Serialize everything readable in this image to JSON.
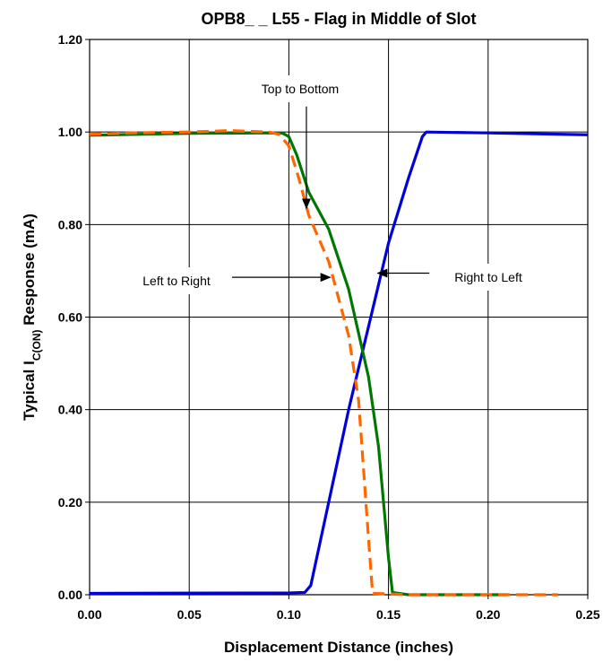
{
  "chart_data": {
    "type": "line",
    "title": "OPB8_ _ L55 - Flag in Middle of Slot",
    "xlabel": "Displacement Distance (inches)",
    "ylabel": {
      "pre": "Typical I",
      "sub": "C(ON)",
      "post": " Response (mA)"
    },
    "xlim": [
      0,
      0.25
    ],
    "ylim": [
      0,
      1.2
    ],
    "x_ticks": [
      0,
      0.05,
      0.1,
      0.15,
      0.2,
      0.25
    ],
    "x_tick_labels": [
      "0.00",
      "0.05",
      "0.10",
      "0.15",
      "0.20",
      "0.25"
    ],
    "y_ticks": [
      0,
      0.2,
      0.4,
      0.6,
      0.8,
      1.0,
      1.2
    ],
    "y_tick_labels": [
      "0.00",
      "0.20",
      "0.40",
      "0.60",
      "0.80",
      "1.00",
      "1.20"
    ],
    "grid": true,
    "series": [
      {
        "color": "#0000dd",
        "dash": false,
        "points": [
          [
            0,
            0.003
          ],
          [
            0.1,
            0.004
          ],
          [
            0.108,
            0.005
          ],
          [
            0.111,
            0.02
          ],
          [
            0.12,
            0.2
          ],
          [
            0.13,
            0.4
          ],
          [
            0.14,
            0.58
          ],
          [
            0.15,
            0.76
          ],
          [
            0.16,
            0.9
          ],
          [
            0.167,
            0.99
          ],
          [
            0.169,
            1.0
          ],
          [
            0.2,
            0.998
          ],
          [
            0.25,
            0.994
          ]
        ]
      },
      {
        "color": "#007700",
        "dash": false,
        "points": [
          [
            0,
            0.993
          ],
          [
            0.05,
            0.997
          ],
          [
            0.09,
            0.998
          ],
          [
            0.097,
            0.997
          ],
          [
            0.1,
            0.99
          ],
          [
            0.104,
            0.95
          ],
          [
            0.11,
            0.87
          ],
          [
            0.12,
            0.79
          ],
          [
            0.13,
            0.66
          ],
          [
            0.14,
            0.47
          ],
          [
            0.145,
            0.32
          ],
          [
            0.15,
            0.08
          ],
          [
            0.152,
            0.005
          ],
          [
            0.16,
            0.0
          ],
          [
            0.21,
            0.0
          ]
        ]
      },
      {
        "color": "#ff6600",
        "dash": true,
        "points": [
          [
            0,
            0.995
          ],
          [
            0.02,
            0.998
          ],
          [
            0.05,
            1.0
          ],
          [
            0.07,
            1.003
          ],
          [
            0.09,
            1.0
          ],
          [
            0.095,
            0.995
          ],
          [
            0.1,
            0.97
          ],
          [
            0.105,
            0.9
          ],
          [
            0.11,
            0.82
          ],
          [
            0.12,
            0.72
          ],
          [
            0.13,
            0.56
          ],
          [
            0.135,
            0.42
          ],
          [
            0.14,
            0.12
          ],
          [
            0.142,
            0.003
          ],
          [
            0.16,
            0.0
          ],
          [
            0.235,
            0.0
          ]
        ]
      }
    ],
    "annotations": [
      {
        "text": "Top to Bottom",
        "arrow_from": [
          0.1088,
          1.055
        ],
        "arrow_to": [
          0.1088,
          0.835
        ]
      },
      {
        "text": "Left to Right",
        "arrow_from": [
          0.0715,
          0.686
        ],
        "arrow_to": [
          0.1208,
          0.686
        ]
      },
      {
        "text": "Right to Left",
        "arrow_from": [
          0.1705,
          0.695
        ],
        "arrow_to": [
          0.1445,
          0.695
        ]
      }
    ]
  }
}
